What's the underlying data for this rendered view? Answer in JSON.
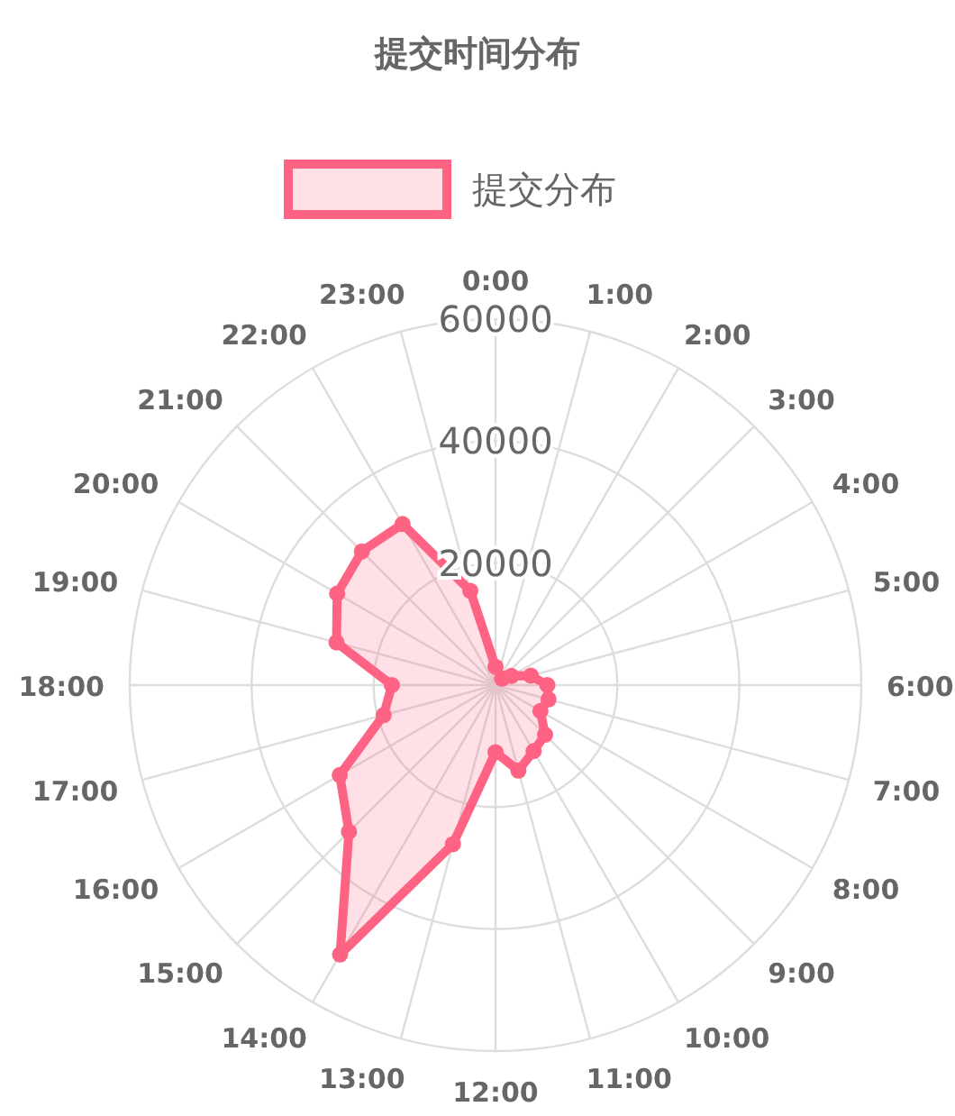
{
  "chart_data": {
    "type": "radar",
    "title": "提交时间分布",
    "categories": [
      "0:00",
      "1:00",
      "2:00",
      "3:00",
      "4:00",
      "5:00",
      "6:00",
      "7:00",
      "8:00",
      "9:00",
      "10:00",
      "11:00",
      "12:00",
      "13:00",
      "14:00",
      "15:00",
      "16:00",
      "17:00",
      "18:00",
      "19:00",
      "20:00",
      "21:00",
      "22:00",
      "23:00"
    ],
    "series": [
      {
        "name": "提交分布",
        "color": "#ff6384",
        "values": [
          3000,
          null,
          null,
          1500,
          3000,
          6000,
          8500,
          9000,
          8500,
          11500,
          12500,
          14500,
          11000,
          27000,
          51000,
          34000,
          29500,
          19000,
          17000,
          27000,
          30000,
          31000,
          30500,
          16000
        ]
      }
    ],
    "ylim": [
      0,
      60000
    ],
    "yticks": [
      20000,
      40000,
      60000
    ],
    "grid": true,
    "legend": "top",
    "marker": "circle"
  }
}
